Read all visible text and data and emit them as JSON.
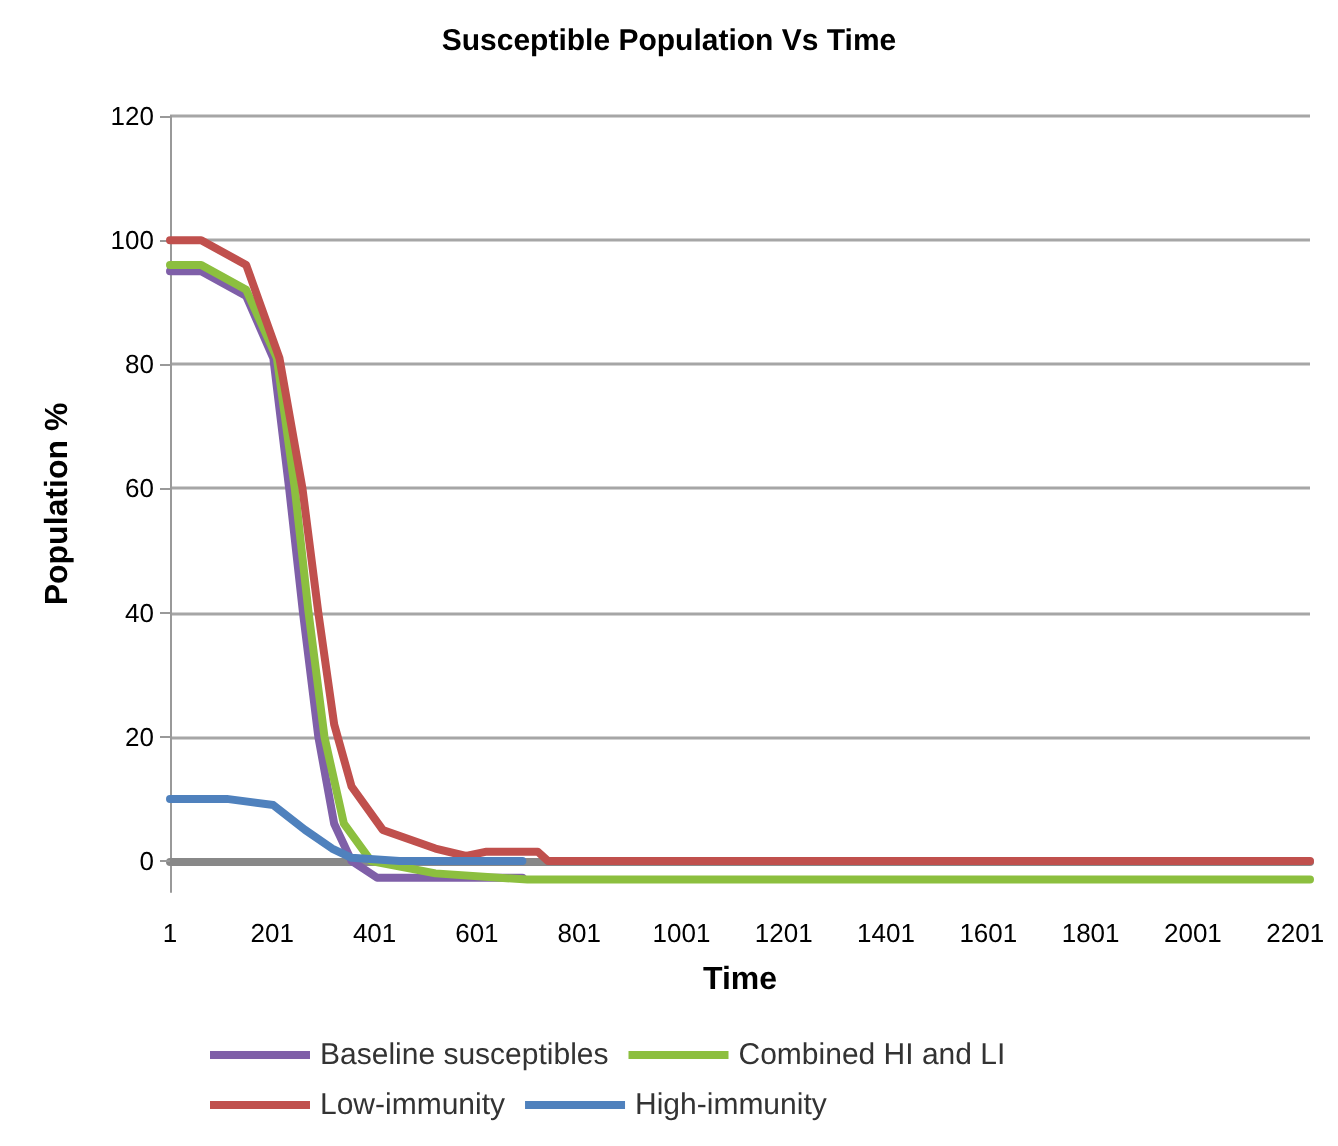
{
  "chart_data": {
    "type": "line",
    "title": "Susceptible Population Vs Time",
    "xlabel": "Time",
    "ylabel": "Population %",
    "xlim": [
      1,
      2230
    ],
    "xticks": [
      1,
      201,
      401,
      601,
      801,
      1001,
      1201,
      1401,
      1601,
      1801,
      2001,
      2201
    ],
    "ylim": [
      -5,
      120
    ],
    "yticks": [
      0,
      20,
      40,
      60,
      80,
      100,
      120
    ],
    "grid": "y",
    "legend": "bottom",
    "marker": "none",
    "line_style": "solid",
    "series": [
      {
        "name": "Baseline susceptibles",
        "color": "#7f5fa8",
        "x": [
          1,
          62,
          150,
          203,
          234,
          261,
          291,
          322,
          356,
          406,
          690
        ],
        "values": [
          95,
          95,
          91,
          81,
          60,
          40,
          20,
          6,
          0,
          -2.7,
          -2.7
        ]
      },
      {
        "name": "Combined HI and LI",
        "color": "#8cbf3f",
        "x": [
          1,
          62,
          150,
          210,
          245,
          272,
          303,
          341,
          394,
          520,
          700,
          2230
        ],
        "values": [
          96,
          96,
          92,
          81,
          60,
          40,
          20,
          6,
          0,
          -2,
          -3,
          -3
        ]
      },
      {
        "name": "Low-immunity",
        "color": "#c0504d",
        "x": [
          1,
          62,
          150,
          215,
          260,
          291,
          322,
          356,
          417,
          520,
          580,
          620,
          720,
          740,
          2230
        ],
        "values": [
          100,
          100,
          96,
          81,
          60,
          40,
          22,
          12,
          5,
          2,
          0.8,
          1.5,
          1.5,
          0,
          0
        ]
      },
      {
        "name": "High-immunity",
        "color": "#4f81bd",
        "x": [
          1,
          112,
          203,
          265,
          318,
          356,
          450,
          690
        ],
        "values": [
          10,
          10,
          9,
          5,
          2,
          0.5,
          0,
          0
        ]
      }
    ]
  }
}
